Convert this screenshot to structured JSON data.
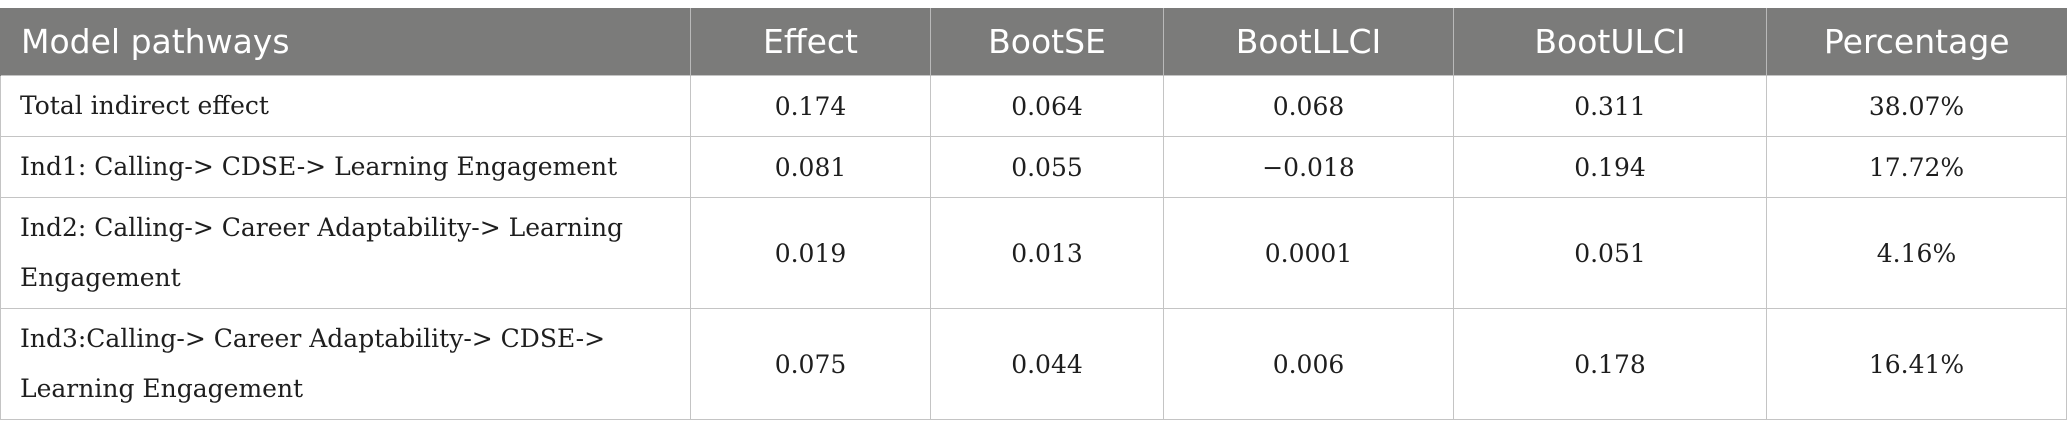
{
  "table": {
    "headers": [
      "Model pathways",
      "Effect",
      "BootSE",
      "BootLLCI",
      "BootULCI",
      "Percentage"
    ],
    "rows": [
      {
        "pathway": "Total indirect effect",
        "effect": "0.174",
        "boot_se": "0.064",
        "boot_llci": "0.068",
        "boot_ulci": "0.311",
        "percentage": "38.07%"
      },
      {
        "pathway": "Ind1: Calling-> CDSE-> Learning Engagement",
        "effect": "0.081",
        "boot_se": "0.055",
        "boot_llci": "−0.018",
        "boot_ulci": "0.194",
        "percentage": "17.72%"
      },
      {
        "pathway": "Ind2: Calling-> Career Adaptability-> Learning Engagement",
        "effect": "0.019",
        "boot_se": "0.013",
        "boot_llci": "0.0001",
        "boot_ulci": "0.051",
        "percentage": "4.16%"
      },
      {
        "pathway": "Ind3:Calling-> Career Adaptability-> CDSE-> Learning Engagement",
        "effect": "0.075",
        "boot_se": "0.044",
        "boot_llci": "0.006",
        "boot_ulci": "0.178",
        "percentage": "16.41%"
      }
    ]
  },
  "colors": {
    "header_background": "#7b7b7a",
    "header_text": "#ffffff",
    "grid_line": "#c4c4c4",
    "body_text": "#1e1e1e"
  }
}
